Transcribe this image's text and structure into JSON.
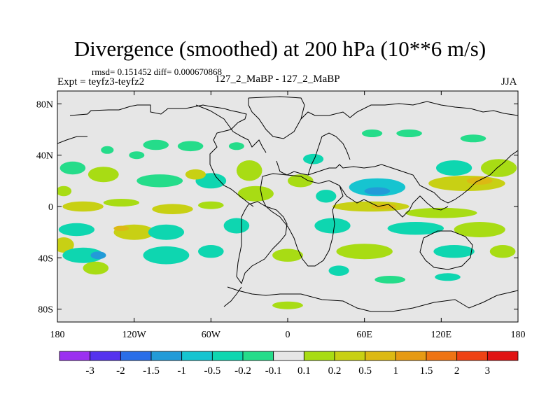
{
  "header": {
    "title": "Divergence (smoothed) at 200 hPa (10**6 m/s)",
    "stats": "rmsd= 0.151452 diff= 0.000670868",
    "expt": "Expt = teyfz3-teyfz2",
    "center": "127_2_MaBP - 127_2_MaBP",
    "season": "JJA"
  },
  "chart_data": {
    "type": "heatmap",
    "title": "Divergence (smoothed) at 200 hPa (10**6 m/s)",
    "xlabel": "",
    "ylabel": "",
    "xlim": [
      -180,
      180
    ],
    "ylim": [
      -90,
      90
    ],
    "x_ticks": [
      {
        "value": -180,
        "label": "180"
      },
      {
        "value": -120,
        "label": "120W"
      },
      {
        "value": -60,
        "label": "60W"
      },
      {
        "value": 0,
        "label": "0"
      },
      {
        "value": 60,
        "label": "60E"
      },
      {
        "value": 120,
        "label": "120E"
      },
      {
        "value": 180,
        "label": "180"
      }
    ],
    "y_ticks": [
      {
        "value": 80,
        "label": "80N"
      },
      {
        "value": 40,
        "label": "40N"
      },
      {
        "value": 0,
        "label": "0"
      },
      {
        "value": -40,
        "label": "40S"
      },
      {
        "value": -80,
        "label": "80S"
      }
    ],
    "background_color": "#e6e6e6",
    "colorbar": {
      "colors": [
        "#9b30f0",
        "#5533ee",
        "#2a6ee8",
        "#229bd8",
        "#16c4d0",
        "#0ed6b0",
        "#25dc8a",
        "#e6e6e6",
        "#a8dc14",
        "#c8d014",
        "#dcb914",
        "#e69a14",
        "#ee7414",
        "#ee4214",
        "#e01414"
      ],
      "labels": [
        "-3",
        "-2",
        "-1.5",
        "-1",
        "-0.5",
        "-0.2",
        "-0.1",
        "0.1",
        "0.2",
        "0.5",
        "1",
        "1.5",
        "2",
        "3"
      ]
    },
    "blobs": [
      {
        "lon": -168,
        "lat": 30,
        "rx": 10,
        "ry": 5,
        "level": 6
      },
      {
        "lon": -144,
        "lat": 25,
        "rx": 12,
        "ry": 6,
        "level": 8
      },
      {
        "lon": -141,
        "lat": 44,
        "rx": 5,
        "ry": 3,
        "level": 6
      },
      {
        "lon": -118,
        "lat": 40,
        "rx": 6,
        "ry": 3,
        "level": 6
      },
      {
        "lon": -103,
        "lat": 48,
        "rx": 10,
        "ry": 4,
        "level": 6
      },
      {
        "lon": -76,
        "lat": 47,
        "rx": 10,
        "ry": 4,
        "level": 6
      },
      {
        "lon": -40,
        "lat": 47,
        "rx": 6,
        "ry": 3,
        "level": 6
      },
      {
        "lon": -100,
        "lat": 20,
        "rx": 18,
        "ry": 5,
        "level": 6
      },
      {
        "lon": -60,
        "lat": 20,
        "rx": 12,
        "ry": 6,
        "level": 5
      },
      {
        "lon": -30,
        "lat": 28,
        "rx": 10,
        "ry": 8,
        "level": 8
      },
      {
        "lon": -72,
        "lat": 25,
        "rx": 8,
        "ry": 4,
        "level": 9
      },
      {
        "lon": -160,
        "lat": 0,
        "rx": 16,
        "ry": 4,
        "level": 9
      },
      {
        "lon": -130,
        "lat": 3,
        "rx": 14,
        "ry": 3,
        "level": 8
      },
      {
        "lon": -90,
        "lat": -2,
        "rx": 16,
        "ry": 4,
        "level": 9
      },
      {
        "lon": -60,
        "lat": 1,
        "rx": 10,
        "ry": 3,
        "level": 8
      },
      {
        "lon": -25,
        "lat": 10,
        "rx": 14,
        "ry": 6,
        "level": 8
      },
      {
        "lon": 10,
        "lat": 20,
        "rx": 10,
        "ry": 5,
        "level": 8
      },
      {
        "lon": 30,
        "lat": 8,
        "rx": 8,
        "ry": 5,
        "level": 5
      },
      {
        "lon": 20,
        "lat": 37,
        "rx": 8,
        "ry": 4,
        "level": 5
      },
      {
        "lon": 66,
        "lat": 57,
        "rx": 8,
        "ry": 3,
        "level": 6
      },
      {
        "lon": 95,
        "lat": 57,
        "rx": 10,
        "ry": 3,
        "level": 6
      },
      {
        "lon": 145,
        "lat": 53,
        "rx": 10,
        "ry": 3,
        "level": 6
      },
      {
        "lon": 130,
        "lat": 30,
        "rx": 14,
        "ry": 6,
        "level": 5
      },
      {
        "lon": 70,
        "lat": 15,
        "rx": 22,
        "ry": 7,
        "level": 4
      },
      {
        "lon": 70,
        "lat": 12,
        "rx": 10,
        "ry": 3,
        "level": 3
      },
      {
        "lon": 140,
        "lat": 18,
        "rx": 30,
        "ry": 6,
        "level": 9
      },
      {
        "lon": 150,
        "lat": 20,
        "rx": 10,
        "ry": 3,
        "level": 10
      },
      {
        "lon": 65,
        "lat": 0,
        "rx": 30,
        "ry": 4,
        "level": 9
      },
      {
        "lon": 75,
        "lat": 0,
        "rx": 10,
        "ry": 2,
        "level": 10
      },
      {
        "lon": 120,
        "lat": -5,
        "rx": 28,
        "ry": 4,
        "level": 8
      },
      {
        "lon": -175,
        "lat": 12,
        "rx": 6,
        "ry": 4,
        "level": 8
      },
      {
        "lon": 165,
        "lat": 30,
        "rx": 14,
        "ry": 7,
        "level": 8
      },
      {
        "lon": -165,
        "lat": -18,
        "rx": 14,
        "ry": 5,
        "level": 5
      },
      {
        "lon": -120,
        "lat": -20,
        "rx": 16,
        "ry": 6,
        "level": 9
      },
      {
        "lon": -130,
        "lat": -17,
        "rx": 6,
        "ry": 2,
        "level": 10
      },
      {
        "lon": -95,
        "lat": -20,
        "rx": 14,
        "ry": 6,
        "level": 5
      },
      {
        "lon": -40,
        "lat": -15,
        "rx": 10,
        "ry": 6,
        "level": 5
      },
      {
        "lon": 35,
        "lat": -15,
        "rx": 14,
        "ry": 6,
        "level": 5
      },
      {
        "lon": 100,
        "lat": -17,
        "rx": 22,
        "ry": 5,
        "level": 5
      },
      {
        "lon": 150,
        "lat": -18,
        "rx": 20,
        "ry": 6,
        "level": 8
      },
      {
        "lon": -175,
        "lat": -30,
        "rx": 8,
        "ry": 6,
        "level": 9
      },
      {
        "lon": -160,
        "lat": -38,
        "rx": 16,
        "ry": 6,
        "level": 5
      },
      {
        "lon": -148,
        "lat": -38,
        "rx": 6,
        "ry": 3,
        "level": 3
      },
      {
        "lon": -95,
        "lat": -38,
        "rx": 18,
        "ry": 7,
        "level": 5
      },
      {
        "lon": -60,
        "lat": -35,
        "rx": 10,
        "ry": 5,
        "level": 5
      },
      {
        "lon": 0,
        "lat": -38,
        "rx": 12,
        "ry": 5,
        "level": 8
      },
      {
        "lon": 60,
        "lat": -35,
        "rx": 22,
        "ry": 6,
        "level": 8
      },
      {
        "lon": 130,
        "lat": -35,
        "rx": 16,
        "ry": 5,
        "level": 5
      },
      {
        "lon": 168,
        "lat": -35,
        "rx": 10,
        "ry": 5,
        "level": 8
      },
      {
        "lon": -150,
        "lat": -48,
        "rx": 10,
        "ry": 5,
        "level": 8
      },
      {
        "lon": 40,
        "lat": -50,
        "rx": 8,
        "ry": 4,
        "level": 5
      },
      {
        "lon": 80,
        "lat": -57,
        "rx": 12,
        "ry": 3,
        "level": 6
      },
      {
        "lon": 125,
        "lat": -55,
        "rx": 10,
        "ry": 3,
        "level": 5
      },
      {
        "lon": 0,
        "lat": -77,
        "rx": 12,
        "ry": 3,
        "level": 8
      }
    ]
  }
}
